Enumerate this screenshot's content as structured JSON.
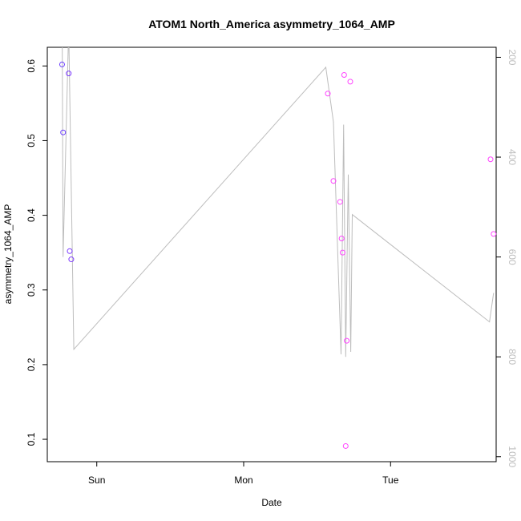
{
  "chart_data": {
    "type": "scatter",
    "title": "ATOM1 North_America asymmetry_1064_AMP",
    "xlabel": "Date",
    "ylabel": "asymmetry_1064_AMP",
    "x_axis": {
      "unit": "days",
      "range": [
        "Sat 15:55",
        "Tue 17:15"
      ],
      "ticks": [
        {
          "x": "Sun 00:00",
          "label": "Sun"
        },
        {
          "x": "Mon 00:00",
          "label": "Mon"
        },
        {
          "x": "Tue 00:00",
          "label": "Tue"
        }
      ]
    },
    "y_axis": {
      "range": [
        0.07,
        0.625
      ],
      "ticks": [
        0.1,
        0.2,
        0.3,
        0.4,
        0.5,
        0.6
      ],
      "tick_labels": [
        "0.1",
        "0.2",
        "0.3",
        "0.4",
        "0.5",
        "0.6"
      ]
    },
    "y2_axis": {
      "range": [
        1010,
        180
      ],
      "ticks": [
        200,
        400,
        600,
        800,
        1000
      ],
      "tick_labels": [
        "200",
        "400",
        "600",
        "800",
        "1000"
      ],
      "color": "#bdbdbd"
    },
    "series": [
      {
        "kind": "points",
        "axis": "left",
        "marker": "open-circle",
        "points": [
          {
            "x": "Sat 18:20",
            "y": 0.602,
            "color": "#6a3cff"
          },
          {
            "x": "Sat 18:30",
            "y": 0.511,
            "color": "#6a3cff"
          },
          {
            "x": "Sat 19:25",
            "y": 0.59,
            "color": "#7a38ff"
          },
          {
            "x": "Sat 19:35",
            "y": 0.352,
            "color": "#7a38ff"
          },
          {
            "x": "Sat 19:50",
            "y": 0.341,
            "color": "#7e38ff"
          },
          {
            "x": "Mon 13:45",
            "y": 0.563,
            "color": "#ff44ff"
          },
          {
            "x": "Mon 14:40",
            "y": 0.446,
            "color": "#ff44ff"
          },
          {
            "x": "Mon 15:45",
            "y": 0.418,
            "color": "#ff44ff"
          },
          {
            "x": "Mon 16:00",
            "y": 0.369,
            "color": "#ff44ff"
          },
          {
            "x": "Mon 16:10",
            "y": 0.35,
            "color": "#ff44ff"
          },
          {
            "x": "Mon 16:25",
            "y": 0.588,
            "color": "#ff44ff"
          },
          {
            "x": "Mon 16:40",
            "y": 0.091,
            "color": "#ff44ff"
          },
          {
            "x": "Mon 16:50",
            "y": 0.232,
            "color": "#ff44ff"
          },
          {
            "x": "Mon 17:25",
            "y": 0.579,
            "color": "#ff44ff"
          },
          {
            "x": "Tue 16:20",
            "y": 0.475,
            "color": "#ff44ff"
          },
          {
            "x": "Tue 16:50",
            "y": 0.375,
            "color": "#ff44ff"
          }
        ]
      },
      {
        "kind": "line",
        "axis": "right",
        "color": "#bdbdbd",
        "points": [
          {
            "x": "Sat 18:20",
            "y": 100
          },
          {
            "x": "Sat 18:30",
            "y": 600
          },
          {
            "x": "Sat 19:25",
            "y": 140
          },
          {
            "x": "Sat 20:15",
            "y": 785
          },
          {
            "x": "Mon 13:25",
            "y": 220
          },
          {
            "x": "Mon 14:40",
            "y": 330
          },
          {
            "x": "Mon 15:55",
            "y": 795
          },
          {
            "x": "Mon 16:20",
            "y": 335
          },
          {
            "x": "Mon 16:40",
            "y": 800
          },
          {
            "x": "Mon 17:05",
            "y": 435
          },
          {
            "x": "Mon 17:30",
            "y": 790
          },
          {
            "x": "Mon 17:45",
            "y": 515
          },
          {
            "x": "Tue 16:10",
            "y": 730
          },
          {
            "x": "Tue 16:50",
            "y": 672
          }
        ]
      }
    ]
  }
}
